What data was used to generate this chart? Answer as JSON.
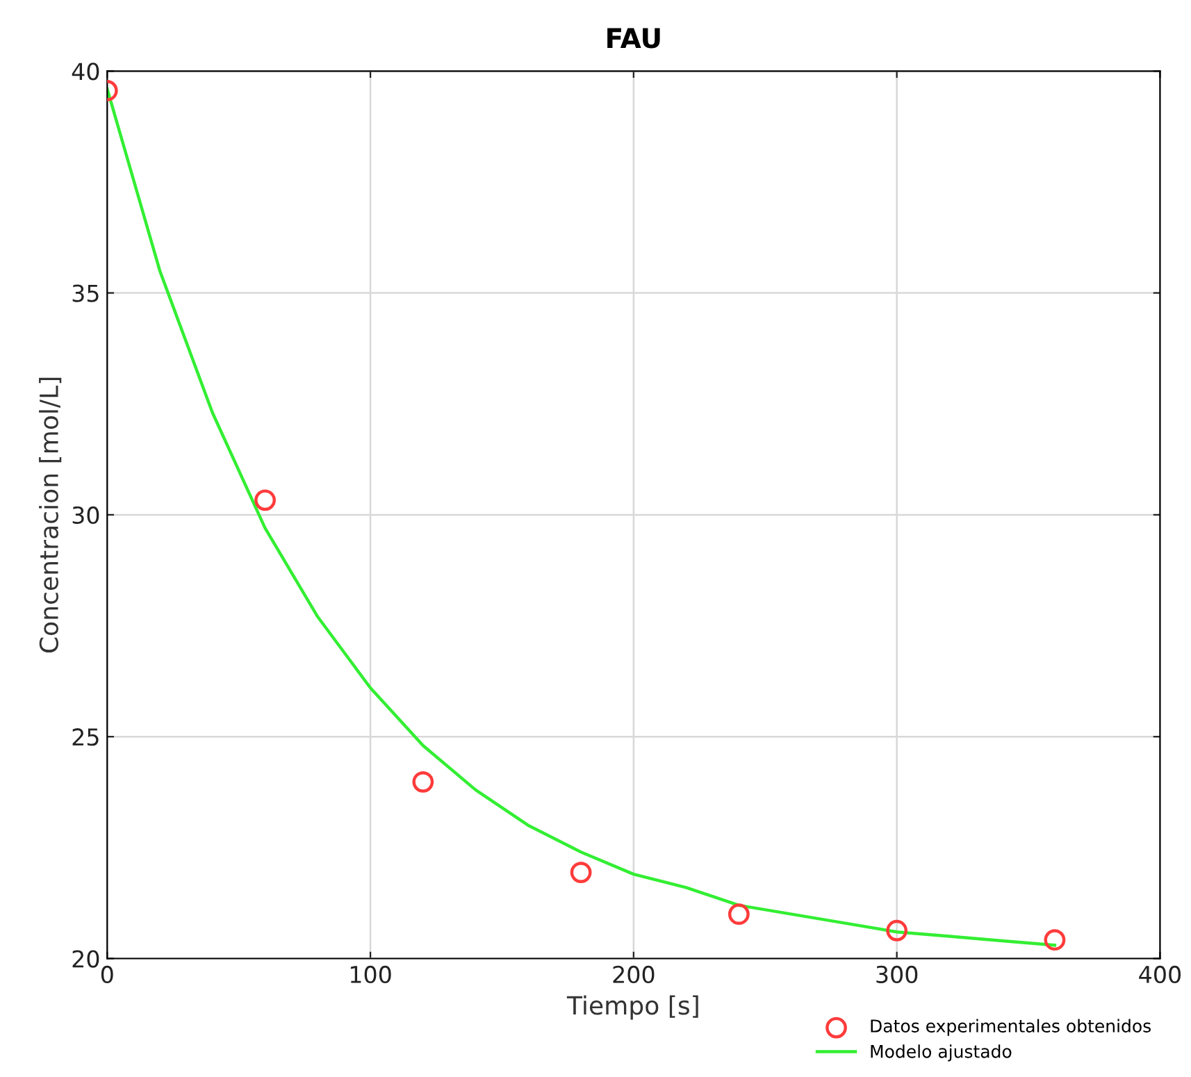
{
  "chart_data": {
    "type": "scatter",
    "title": "FAU",
    "xlabel": "Tiempo [s]",
    "ylabel": "Concentracion [mol/L]",
    "xlim": [
      0,
      400
    ],
    "xticks": [
      0,
      100,
      200,
      300,
      400
    ],
    "ylim": [
      20,
      40
    ],
    "yticks": [
      20,
      25,
      30,
      35,
      40
    ],
    "grid": true,
    "legend": "bottom right",
    "series": [
      {
        "name": "Datos experimentales obtenidos",
        "marker": "circle",
        "color": "#ff3b3b",
        "x": [
          0,
          60,
          120,
          180,
          240,
          300,
          360
        ],
        "values": [
          39.56,
          30.33,
          23.98,
          21.94,
          21.0,
          20.63,
          20.42
        ]
      },
      {
        "name": "Modelo ajustado",
        "type": "line",
        "marker": "none",
        "line_style": "solid",
        "color": "#33ee33",
        "x": [
          0,
          20,
          40,
          60,
          80,
          100,
          120,
          140,
          160,
          180,
          200,
          220,
          240,
          260,
          280,
          300,
          320,
          340,
          360
        ],
        "values": [
          39.6,
          35.5,
          32.3,
          29.7,
          27.7,
          26.1,
          24.8,
          23.8,
          23.0,
          22.4,
          21.9,
          21.6,
          21.2,
          21.0,
          20.8,
          20.6,
          20.5,
          20.4,
          20.3
        ]
      }
    ]
  }
}
